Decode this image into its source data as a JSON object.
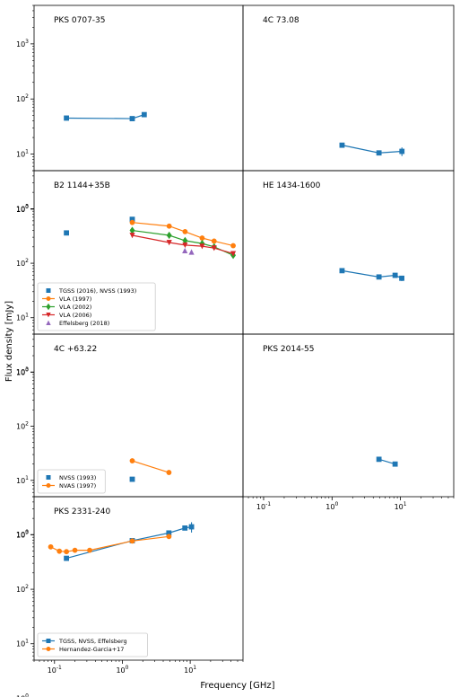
{
  "figure": {
    "xlabel": "Frequency [GHz]",
    "ylabel": "Flux density [mJy]"
  },
  "colors": {
    "blue": "#1f77b4",
    "orange": "#ff7f0e",
    "green": "#2ca02c",
    "red": "#d62728",
    "purple": "#9467bd"
  },
  "chart_data": [
    {
      "type": "line",
      "title": "PKS 0707-35",
      "xscale": "log",
      "yscale": "log",
      "xlim": [
        0.05,
        60
      ],
      "ylim": [
        5,
        5000
      ],
      "grid": false,
      "legend": "none",
      "series": [
        {
          "color": "blue",
          "marker": "square",
          "x": [
            0.15,
            1.4,
            2.1
          ],
          "y": [
            45,
            44,
            52
          ]
        }
      ]
    },
    {
      "type": "line",
      "title": "4C 73.08",
      "xscale": "log",
      "yscale": "log",
      "xlim": [
        0.05,
        60
      ],
      "ylim": [
        5,
        5000
      ],
      "grid": false,
      "legend": "none",
      "series": [
        {
          "color": "blue",
          "marker": "square",
          "x": [
            1.4,
            4.85,
            10.5
          ],
          "y": [
            14.5,
            10.5,
            11.2
          ],
          "yerr": [
            0,
            0,
            2
          ]
        }
      ]
    },
    {
      "type": "line",
      "title": "B2 1144+35B",
      "xscale": "log",
      "yscale": "log",
      "xlim": [
        0.05,
        60
      ],
      "ylim": [
        5,
        5000
      ],
      "grid": false,
      "legend": "lower-left",
      "series": [
        {
          "name": "TGSS (2016), NVSS (1993)",
          "color": "blue",
          "marker": "square",
          "line": false,
          "x": [
            0.15,
            1.4
          ],
          "y": [
            360,
            640
          ]
        },
        {
          "name": "VLA (1997)",
          "color": "orange",
          "marker": "circle",
          "x": [
            1.4,
            4.9,
            8.4,
            15,
            22.5,
            43
          ],
          "y": [
            560,
            480,
            380,
            290,
            255,
            210
          ]
        },
        {
          "name": "VLA (2002)",
          "color": "green",
          "marker": "diamond",
          "x": [
            1.4,
            4.9,
            8.4,
            15,
            22.5,
            43
          ],
          "y": [
            400,
            325,
            260,
            230,
            200,
            140
          ]
        },
        {
          "name": "VLA (2006)",
          "color": "red",
          "marker": "triangle-down",
          "x": [
            1.4,
            4.9,
            8.4,
            15,
            22.5,
            43
          ],
          "y": [
            325,
            240,
            215,
            205,
            190,
            150
          ]
        },
        {
          "name": "Effelsberg (2018)",
          "color": "purple",
          "marker": "triangle-up",
          "line": false,
          "x": [
            8.35,
            10.45
          ],
          "y": [
            170,
            160
          ]
        }
      ]
    },
    {
      "type": "line",
      "title": "HE 1434-1600",
      "xscale": "log",
      "yscale": "log",
      "xlim": [
        0.05,
        60
      ],
      "ylim": [
        5,
        5000
      ],
      "grid": false,
      "legend": "none",
      "series": [
        {
          "color": "blue",
          "marker": "square",
          "x": [
            1.4,
            4.85,
            8.35,
            10.45
          ],
          "y": [
            73,
            56,
            60,
            53
          ],
          "yerr": [
            0,
            0,
            0,
            6
          ]
        }
      ]
    },
    {
      "type": "line",
      "title": "4C +63.22",
      "xscale": "log",
      "yscale": "log",
      "xlim": [
        0.05,
        60
      ],
      "ylim": [
        5,
        5000
      ],
      "grid": false,
      "legend": "lower-left",
      "series": [
        {
          "name": "NVSS (1993)",
          "color": "blue",
          "marker": "square",
          "line": false,
          "x": [
            1.4
          ],
          "y": [
            10.5
          ]
        },
        {
          "name": "NVAS (1997)",
          "color": "orange",
          "marker": "circle",
          "x": [
            1.4,
            4.86
          ],
          "y": [
            23,
            14
          ]
        }
      ]
    },
    {
      "type": "line",
      "title": "PKS 2014-55",
      "xscale": "log",
      "yscale": "log",
      "xlim": [
        0.05,
        60
      ],
      "ylim": [
        5,
        5000
      ],
      "grid": false,
      "legend": "none",
      "series": [
        {
          "color": "blue",
          "marker": "square",
          "x": [
            4.85,
            8.35
          ],
          "y": [
            24.5,
            20
          ]
        }
      ]
    },
    {
      "type": "line",
      "title": "PKS 2331-240",
      "xscale": "log",
      "yscale": "log",
      "xlim": [
        0.05,
        60
      ],
      "ylim": [
        5,
        5000
      ],
      "grid": false,
      "legend": "lower-left",
      "series": [
        {
          "name": "TGSS, NVSS, Effelsberg",
          "color": "blue",
          "marker": "square",
          "x": [
            0.15,
            1.4,
            4.85,
            8.35,
            10.45
          ],
          "y": [
            370,
            780,
            1080,
            1330,
            1400
          ],
          "yerr": [
            0,
            0,
            0,
            0,
            300
          ]
        },
        {
          "name": "Hernandez-Garcia+17",
          "color": "orange",
          "marker": "circle",
          "x": [
            0.088,
            0.118,
            0.15,
            0.2,
            0.33,
            1.4,
            4.86
          ],
          "y": [
            600,
            500,
            490,
            520,
            520,
            770,
            930
          ]
        }
      ]
    }
  ]
}
